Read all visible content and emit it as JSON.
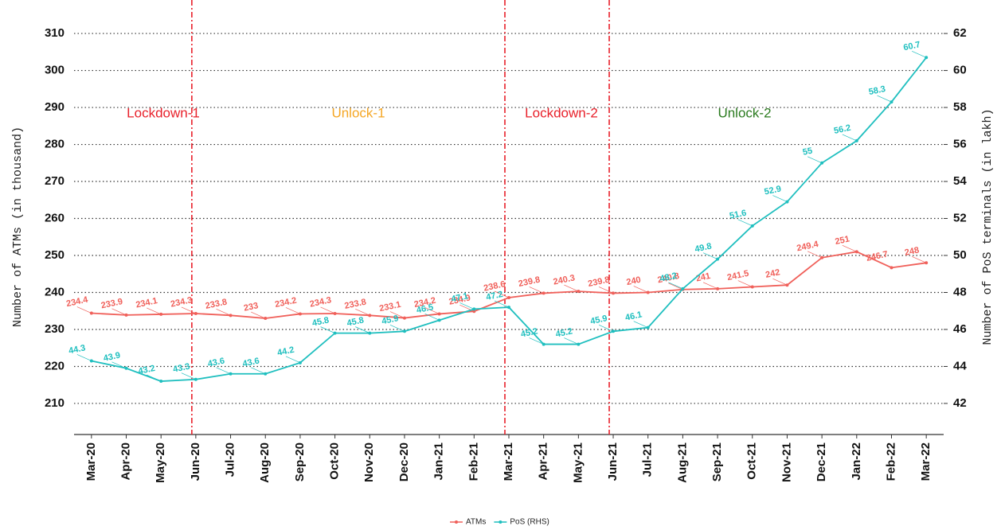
{
  "chart_data": {
    "type": "line",
    "y_label": "Number of ATMs (in thousand)",
    "y2_label": "Number of PoS terminals (in lakh)",
    "categories": [
      "Mar-20",
      "Apr-20",
      "May-20",
      "Jun-20",
      "Jul-20",
      "Aug-20",
      "Sep-20",
      "Oct-20",
      "Nov-20",
      "Dec-20",
      "Jan-21",
      "Feb-21",
      "Mar-21",
      "Apr-21",
      "May-21",
      "Jun-21",
      "Jul-21",
      "Aug-21",
      "Sep-21",
      "Oct-21",
      "Nov-21",
      "Dec-21",
      "Jan-22",
      "Feb-22",
      "Mar-22"
    ],
    "series": [
      {
        "name": "ATMs",
        "color": "#f0605a",
        "values": [
          234.4,
          233.9,
          234.1,
          234.3,
          233.8,
          233,
          234.2,
          234.3,
          233.8,
          233.1,
          234.2,
          234.9,
          238.6,
          239.8,
          240.3,
          239.8,
          240,
          240.8,
          241,
          241.5,
          242,
          249.4,
          251,
          246.7,
          248
        ]
      },
      {
        "name": "PoS (RHS)",
        "color": "#1fbfbf",
        "axis": "y2",
        "values": [
          44.3,
          43.9,
          43.2,
          43.3,
          43.6,
          43.6,
          44.2,
          45.8,
          45.8,
          45.9,
          46.5,
          47.1,
          47.2,
          45.2,
          45.2,
          45.9,
          46.1,
          48.2,
          49.8,
          51.6,
          52.9,
          55,
          56.2,
          58.3,
          60.7
        ]
      }
    ],
    "annotations": [
      {
        "text": "Lockdown-1",
        "color": "#e8202a"
      },
      {
        "text": "Unlock-1",
        "color": "#f5a623"
      },
      {
        "text": "Lockdown-2",
        "color": "#e8202a"
      },
      {
        "text": "Unlock-2",
        "color": "#2a7a1e"
      }
    ],
    "ylim": [
      201.6,
      312.6
    ],
    "yticks": [
      210,
      220,
      230,
      240,
      250,
      260,
      270,
      280,
      290,
      300,
      310
    ],
    "y2lim": [
      40.32,
      62.52
    ],
    "y2ticks": [
      42,
      44,
      46,
      48,
      50,
      52,
      54,
      56,
      58,
      60,
      62
    ],
    "grid": true
  }
}
